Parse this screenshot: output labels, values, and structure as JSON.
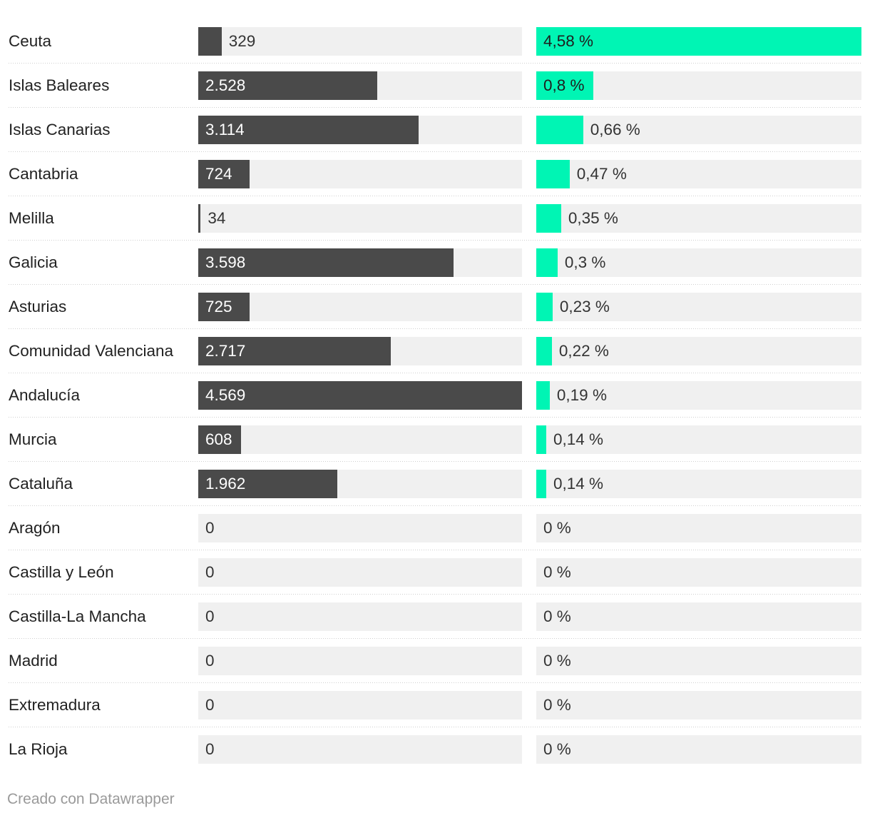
{
  "colors": {
    "count_bar": "#4a4a4a",
    "percent_bar": "#00f5b4",
    "track": "#f0f0f0"
  },
  "chart_data": {
    "type": "table",
    "columns": [
      "",
      "",
      ""
    ],
    "count_max": 4569,
    "percent_max": 4.58,
    "rows": [
      {
        "region": "Ceuta",
        "count": 329,
        "count_label": "329",
        "percent": 4.58,
        "percent_label": "4,58 %"
      },
      {
        "region": "Islas Baleares",
        "count": 2528,
        "count_label": "2.528",
        "percent": 0.8,
        "percent_label": "0,8 %"
      },
      {
        "region": "Islas Canarias",
        "count": 3114,
        "count_label": "3.114",
        "percent": 0.66,
        "percent_label": "0,66 %"
      },
      {
        "region": "Cantabria",
        "count": 724,
        "count_label": "724",
        "percent": 0.47,
        "percent_label": "0,47 %"
      },
      {
        "region": "Melilla",
        "count": 34,
        "count_label": "34",
        "percent": 0.35,
        "percent_label": "0,35 %"
      },
      {
        "region": "Galicia",
        "count": 3598,
        "count_label": "3.598",
        "percent": 0.3,
        "percent_label": "0,3 %"
      },
      {
        "region": "Asturias",
        "count": 725,
        "count_label": "725",
        "percent": 0.23,
        "percent_label": "0,23 %"
      },
      {
        "region": "Comunidad Valenciana",
        "count": 2717,
        "count_label": "2.717",
        "percent": 0.22,
        "percent_label": "0,22 %"
      },
      {
        "region": "Andalucía",
        "count": 4569,
        "count_label": "4.569",
        "percent": 0.19,
        "percent_label": "0,19 %"
      },
      {
        "region": "Murcia",
        "count": 608,
        "count_label": "608",
        "percent": 0.14,
        "percent_label": "0,14 %"
      },
      {
        "region": "Cataluña",
        "count": 1962,
        "count_label": "1.962",
        "percent": 0.14,
        "percent_label": "0,14 %"
      },
      {
        "region": "Aragón",
        "count": 0,
        "count_label": "0",
        "percent": 0,
        "percent_label": "0 %"
      },
      {
        "region": "Castilla y León",
        "count": 0,
        "count_label": "0",
        "percent": 0,
        "percent_label": "0 %"
      },
      {
        "region": "Castilla-La Mancha",
        "count": 0,
        "count_label": "0",
        "percent": 0,
        "percent_label": "0 %"
      },
      {
        "region": "Madrid",
        "count": 0,
        "count_label": "0",
        "percent": 0,
        "percent_label": "0 %"
      },
      {
        "region": "Extremadura",
        "count": 0,
        "count_label": "0",
        "percent": 0,
        "percent_label": "0 %"
      },
      {
        "region": "La Rioja",
        "count": 0,
        "count_label": "0",
        "percent": 0,
        "percent_label": "0 %"
      }
    ]
  },
  "footer": {
    "credit": "Creado con Datawrapper"
  }
}
